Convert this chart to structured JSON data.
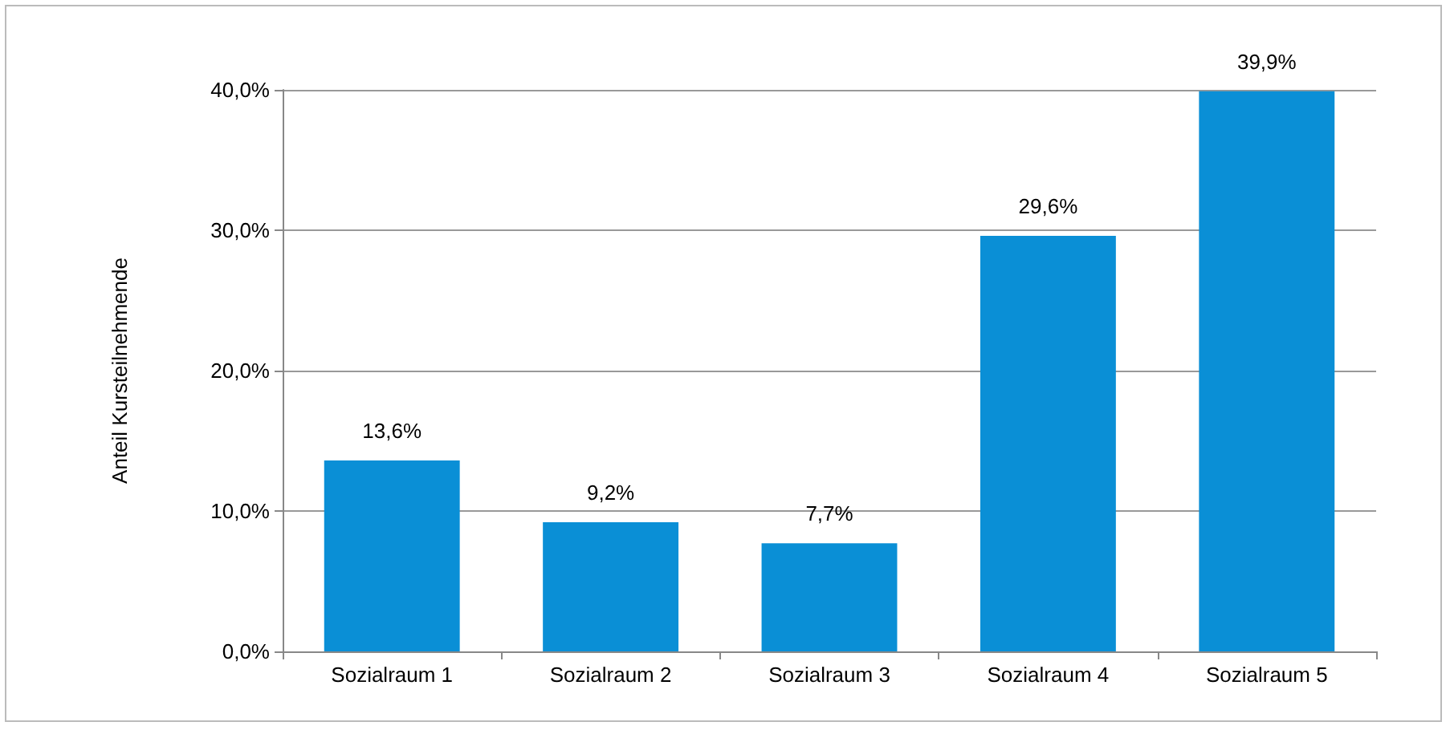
{
  "chart_data": {
    "type": "bar",
    "ylabel": "Anteil Kursteilnehmende",
    "categories": [
      "Sozialraum 1",
      "Sozialraum 2",
      "Sozialraum 3",
      "Sozialraum 4",
      "Sozialraum 5"
    ],
    "values": [
      13.6,
      9.2,
      7.7,
      29.6,
      39.9
    ],
    "value_labels": [
      "13,6%",
      "9,2%",
      "7,7%",
      "29,6%",
      "39,9%"
    ],
    "color": "#0a8fd6",
    "ylim": [
      0,
      40
    ],
    "yticks": [
      {
        "value": 0,
        "label": "0,0%"
      },
      {
        "value": 10,
        "label": "10,0%"
      },
      {
        "value": 20,
        "label": "20,0%"
      },
      {
        "value": 30,
        "label": "30,0%"
      },
      {
        "value": 40,
        "label": "40,0%"
      }
    ],
    "grid": "y"
  }
}
